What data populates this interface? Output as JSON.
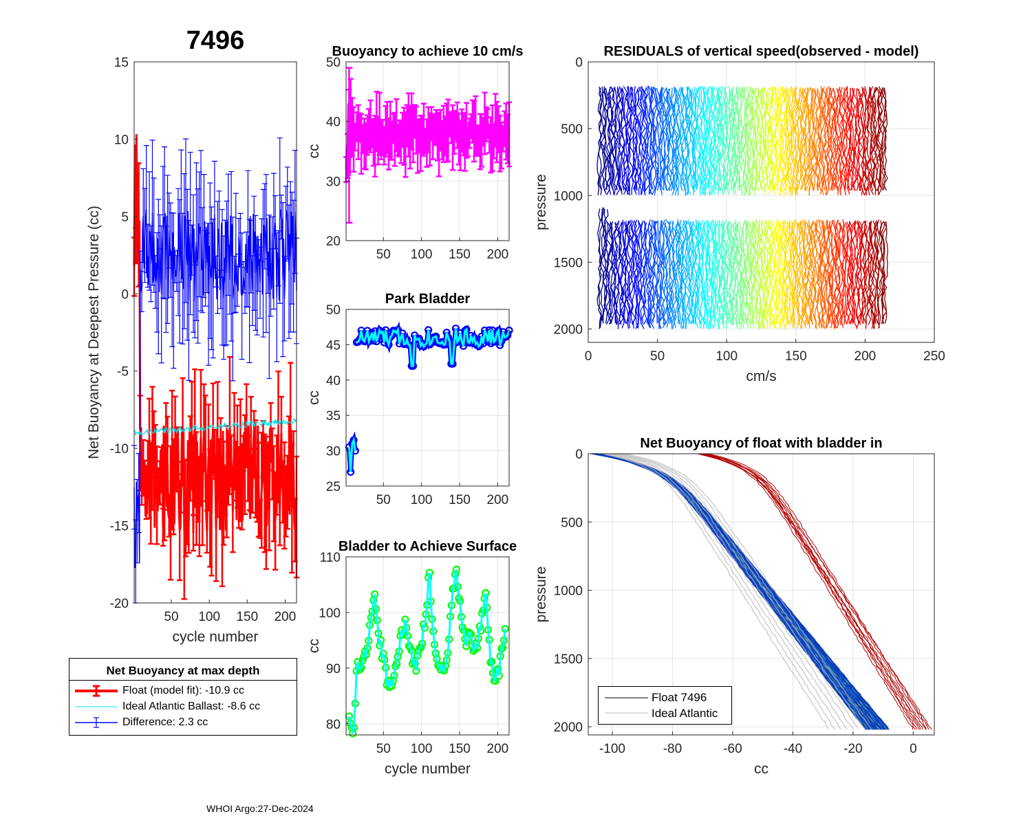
{
  "figure": {
    "title": "7496",
    "footer": "WHOI Argo:27-Dec-2024"
  },
  "chart_data": [
    {
      "id": "net-buoyancy",
      "type": "line",
      "title": "",
      "xlabel": "cycle number",
      "ylabel": "Net Buoyancy at Deepest Pressure (cc)",
      "xlim": [
        1,
        215
      ],
      "ylim": [
        -20,
        15
      ],
      "xticks": [
        50,
        100,
        150,
        200
      ],
      "yticks": [
        -20,
        -15,
        -10,
        -5,
        0,
        5,
        10,
        15
      ],
      "grid": false,
      "series": [
        {
          "name": "Float (model fit)",
          "color": "#ff0000",
          "errorbars": true,
          "early_cycles": [
            1,
            8
          ],
          "early_range": [
            -1,
            10.5
          ],
          "mean": -12,
          "spread": 3.5
        },
        {
          "name": "Ideal Atlantic Ballast",
          "color": "#00e5ee",
          "errorbars": false,
          "start": -9.0,
          "end": -8.2
        },
        {
          "name": "Difference",
          "color": "#0000ff",
          "errorbars": true,
          "mean": 2.5,
          "spread": 3.0,
          "early_value": -15
        }
      ],
      "legend": {
        "title": "Net Buoyancy at max depth",
        "entries": [
          {
            "label": "Float (model fit): -10.9 cc",
            "color": "#ff0000",
            "style": "errorbar-thick"
          },
          {
            "label": "Ideal Atlantic Ballast:  -8.6 cc",
            "color": "#00e5ee",
            "style": "line"
          },
          {
            "label": "Difference:   2.3 cc",
            "color": "#0000ff",
            "style": "errorbar"
          }
        ]
      }
    },
    {
      "id": "buoyancy-10cms",
      "type": "line",
      "title": "Buoyancy to achieve 10 cm/s",
      "xlabel": "",
      "ylabel": "cc",
      "xlim": [
        1,
        215
      ],
      "ylim": [
        20,
        50
      ],
      "xticks": [
        50,
        100,
        150,
        200
      ],
      "yticks": [
        20,
        30,
        40,
        50
      ],
      "grid": true,
      "series": [
        {
          "name": "buoyancy",
          "color": "#ff00ff",
          "errorbars": true,
          "mean": 38,
          "spread": 2.2,
          "early_min": 23,
          "early_max": 49
        }
      ]
    },
    {
      "id": "park-bladder",
      "type": "line",
      "title": "Park Bladder",
      "xlabel": "",
      "ylabel": "cc",
      "xlim": [
        1,
        215
      ],
      "ylim": [
        25,
        50
      ],
      "xticks": [
        50,
        100,
        150,
        200
      ],
      "yticks": [
        25,
        30,
        35,
        40,
        45,
        50
      ],
      "grid": true,
      "series": [
        {
          "name": "park",
          "color": "#00ffff",
          "marker_color": "#0000ff",
          "early": [
            [
              5,
              30.5
            ],
            [
              7,
              27
            ],
            [
              9,
              31
            ],
            [
              11,
              31.5
            ],
            [
              13,
              30
            ]
          ],
          "mean": 46,
          "spread": 1.3,
          "dips": [
            [
              88,
              42
            ],
            [
              140,
              42.3
            ]
          ]
        }
      ]
    },
    {
      "id": "bladder-surface",
      "type": "line",
      "title": "Bladder to Achieve Surface",
      "xlabel": "cycle number",
      "ylabel": "cc",
      "xlim": [
        1,
        215
      ],
      "ylim": [
        78,
        110
      ],
      "xticks": [
        50,
        100,
        150,
        200
      ],
      "yticks": [
        80,
        90,
        100,
        110
      ],
      "grid": true,
      "series": [
        {
          "name": "surface",
          "color": "#00ffff",
          "marker_color": "#00ff00",
          "keypoints": [
            [
              5,
              82
            ],
            [
              8,
              79
            ],
            [
              11,
              78.5
            ],
            [
              15,
              90
            ],
            [
              22,
              91
            ],
            [
              30,
              94
            ],
            [
              38,
              103
            ],
            [
              45,
              95
            ],
            [
              52,
              90
            ],
            [
              58,
              86
            ],
            [
              65,
              90
            ],
            [
              72,
              95
            ],
            [
              78,
              98
            ],
            [
              85,
              93
            ],
            [
              92,
              90
            ],
            [
              100,
              94
            ],
            [
              106,
              100
            ],
            [
              110,
              107
            ],
            [
              116,
              96
            ],
            [
              122,
              91
            ],
            [
              128,
              89
            ],
            [
              134,
              93
            ],
            [
              140,
              102
            ],
            [
              146,
              108
            ],
            [
              152,
              99
            ],
            [
              158,
              94
            ],
            [
              164,
              97
            ],
            [
              170,
              93
            ],
            [
              176,
              96
            ],
            [
              184,
              104
            ],
            [
              190,
              92
            ],
            [
              196,
              88
            ],
            [
              202,
              90
            ],
            [
              210,
              96
            ]
          ]
        }
      ]
    },
    {
      "id": "residuals",
      "type": "line",
      "title": "RESIDUALS of vertical speed(observed - model)",
      "xlabel": "cm/s",
      "ylabel": "pressure",
      "xlim": [
        0,
        250
      ],
      "ylim": [
        2100,
        0
      ],
      "xticks": [
        0,
        50,
        100,
        150,
        200,
        250
      ],
      "yticks": [
        0,
        500,
        1000,
        1500,
        2000
      ],
      "grid": true,
      "colormap": "jet",
      "profiles": {
        "count": 210,
        "x_start": 8,
        "x_end": 215,
        "upper_range": [
          180,
          1000
        ],
        "lower_range": [
          1180,
          2000
        ]
      }
    },
    {
      "id": "net-buoyancy-bladder-in",
      "type": "line",
      "title": "Net Buoyancy of float with bladder in",
      "xlabel": "cc",
      "ylabel": "pressure",
      "xlim": [
        -108,
        7
      ],
      "ylim": [
        2060,
        0
      ],
      "xticks": [
        -100,
        -80,
        -60,
        -40,
        -20,
        0
      ],
      "yticks": [
        0,
        500,
        1000,
        1500,
        2000
      ],
      "grid": true,
      "curves": {
        "blue_family": {
          "surface_cc": -107,
          "bottom_cc_range": [
            -16,
            -8
          ]
        },
        "red_family": {
          "surface_cc": -72,
          "bottom_cc_range": [
            0,
            6
          ]
        }
      },
      "legend": {
        "entries": [
          {
            "label": "Float 7496",
            "color": "#000000"
          },
          {
            "label": "Ideal Atlantic",
            "color": "#bbbbbb"
          }
        ]
      }
    }
  ]
}
